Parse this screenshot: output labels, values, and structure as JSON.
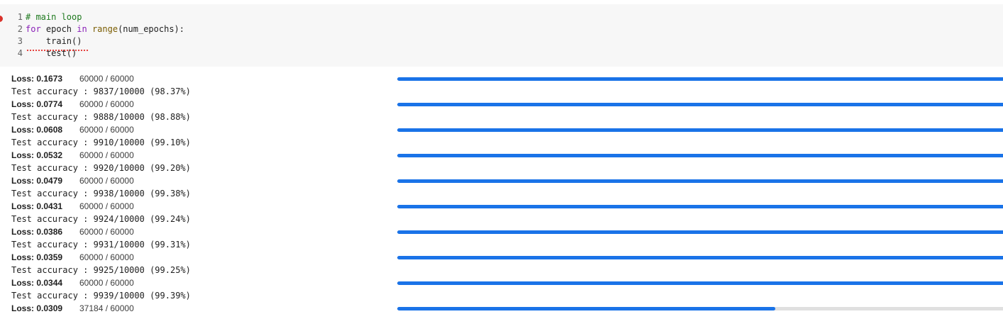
{
  "code_cell": {
    "lines": [
      {
        "num": "1",
        "comment": "# main loop"
      },
      {
        "num": "2",
        "kw": "for",
        "mid": " epoch ",
        "kw2": "in",
        "sp": " ",
        "fn": "range",
        "rest": "(num_epochs):"
      },
      {
        "num": "3",
        "text": "    train()"
      },
      {
        "num": "4",
        "text": "    test()"
      }
    ]
  },
  "output": {
    "epochs": [
      {
        "loss_label": "Loss: 0.1673",
        "count": "60000 / 60000",
        "progress": 1.0,
        "accuracy": "Test accuracy : 9837/10000 (98.37%)"
      },
      {
        "loss_label": "Loss: 0.0774",
        "count": "60000 / 60000",
        "progress": 1.0,
        "accuracy": "Test accuracy : 9888/10000 (98.88%)"
      },
      {
        "loss_label": "Loss: 0.0608",
        "count": "60000 / 60000",
        "progress": 1.0,
        "accuracy": "Test accuracy : 9910/10000 (99.10%)"
      },
      {
        "loss_label": "Loss: 0.0532",
        "count": "60000 / 60000",
        "progress": 1.0,
        "accuracy": "Test accuracy : 9920/10000 (99.20%)"
      },
      {
        "loss_label": "Loss: 0.0479",
        "count": "60000 / 60000",
        "progress": 1.0,
        "accuracy": "Test accuracy : 9938/10000 (99.38%)"
      },
      {
        "loss_label": "Loss: 0.0431",
        "count": "60000 / 60000",
        "progress": 1.0,
        "accuracy": "Test accuracy : 9924/10000 (99.24%)"
      },
      {
        "loss_label": "Loss: 0.0386",
        "count": "60000 / 60000",
        "progress": 1.0,
        "accuracy": "Test accuracy : 9931/10000 (99.31%)"
      },
      {
        "loss_label": "Loss: 0.0359",
        "count": "60000 / 60000",
        "progress": 1.0,
        "accuracy": "Test accuracy : 9925/10000 (99.25%)"
      },
      {
        "loss_label": "Loss: 0.0344",
        "count": "60000 / 60000",
        "progress": 1.0,
        "accuracy": "Test accuracy : 9939/10000 (99.39%)"
      }
    ],
    "current": {
      "loss_label": "Loss: 0.0309",
      "count": "37184 / 60000",
      "progress": 0.6197
    }
  },
  "colors": {
    "progress_fill": "#1a73e8",
    "progress_track": "#e0e0e0",
    "error_marker": "#d9322b"
  }
}
